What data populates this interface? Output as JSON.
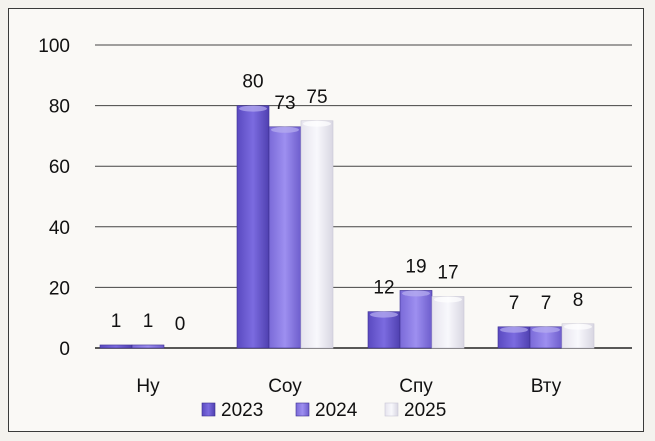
{
  "chart_data": {
    "type": "bar",
    "categories": [
      "Ну",
      "Соу",
      "Спу",
      "Вту"
    ],
    "series": [
      {
        "name": "2023",
        "values": [
          1,
          80,
          12,
          7
        ],
        "color": "#6a5acd"
      },
      {
        "name": "2024",
        "values": [
          1,
          73,
          19,
          7
        ],
        "color": "#8f7fe0"
      },
      {
        "name": "2025",
        "values": [
          0,
          75,
          17,
          8
        ],
        "color": "#ecebf2"
      }
    ],
    "data_labels": [
      [
        "1",
        "80",
        "12",
        "7"
      ],
      [
        "1",
        "73",
        "19",
        "7"
      ],
      [
        "0",
        "75",
        "17",
        "8"
      ]
    ],
    "y_ticks": [
      "0",
      "20",
      "40",
      "60",
      "80",
      "100"
    ],
    "ylim": [
      0,
      100
    ],
    "grid": true,
    "legend_position": "bottom",
    "title": "",
    "xlabel": "",
    "ylabel": ""
  }
}
